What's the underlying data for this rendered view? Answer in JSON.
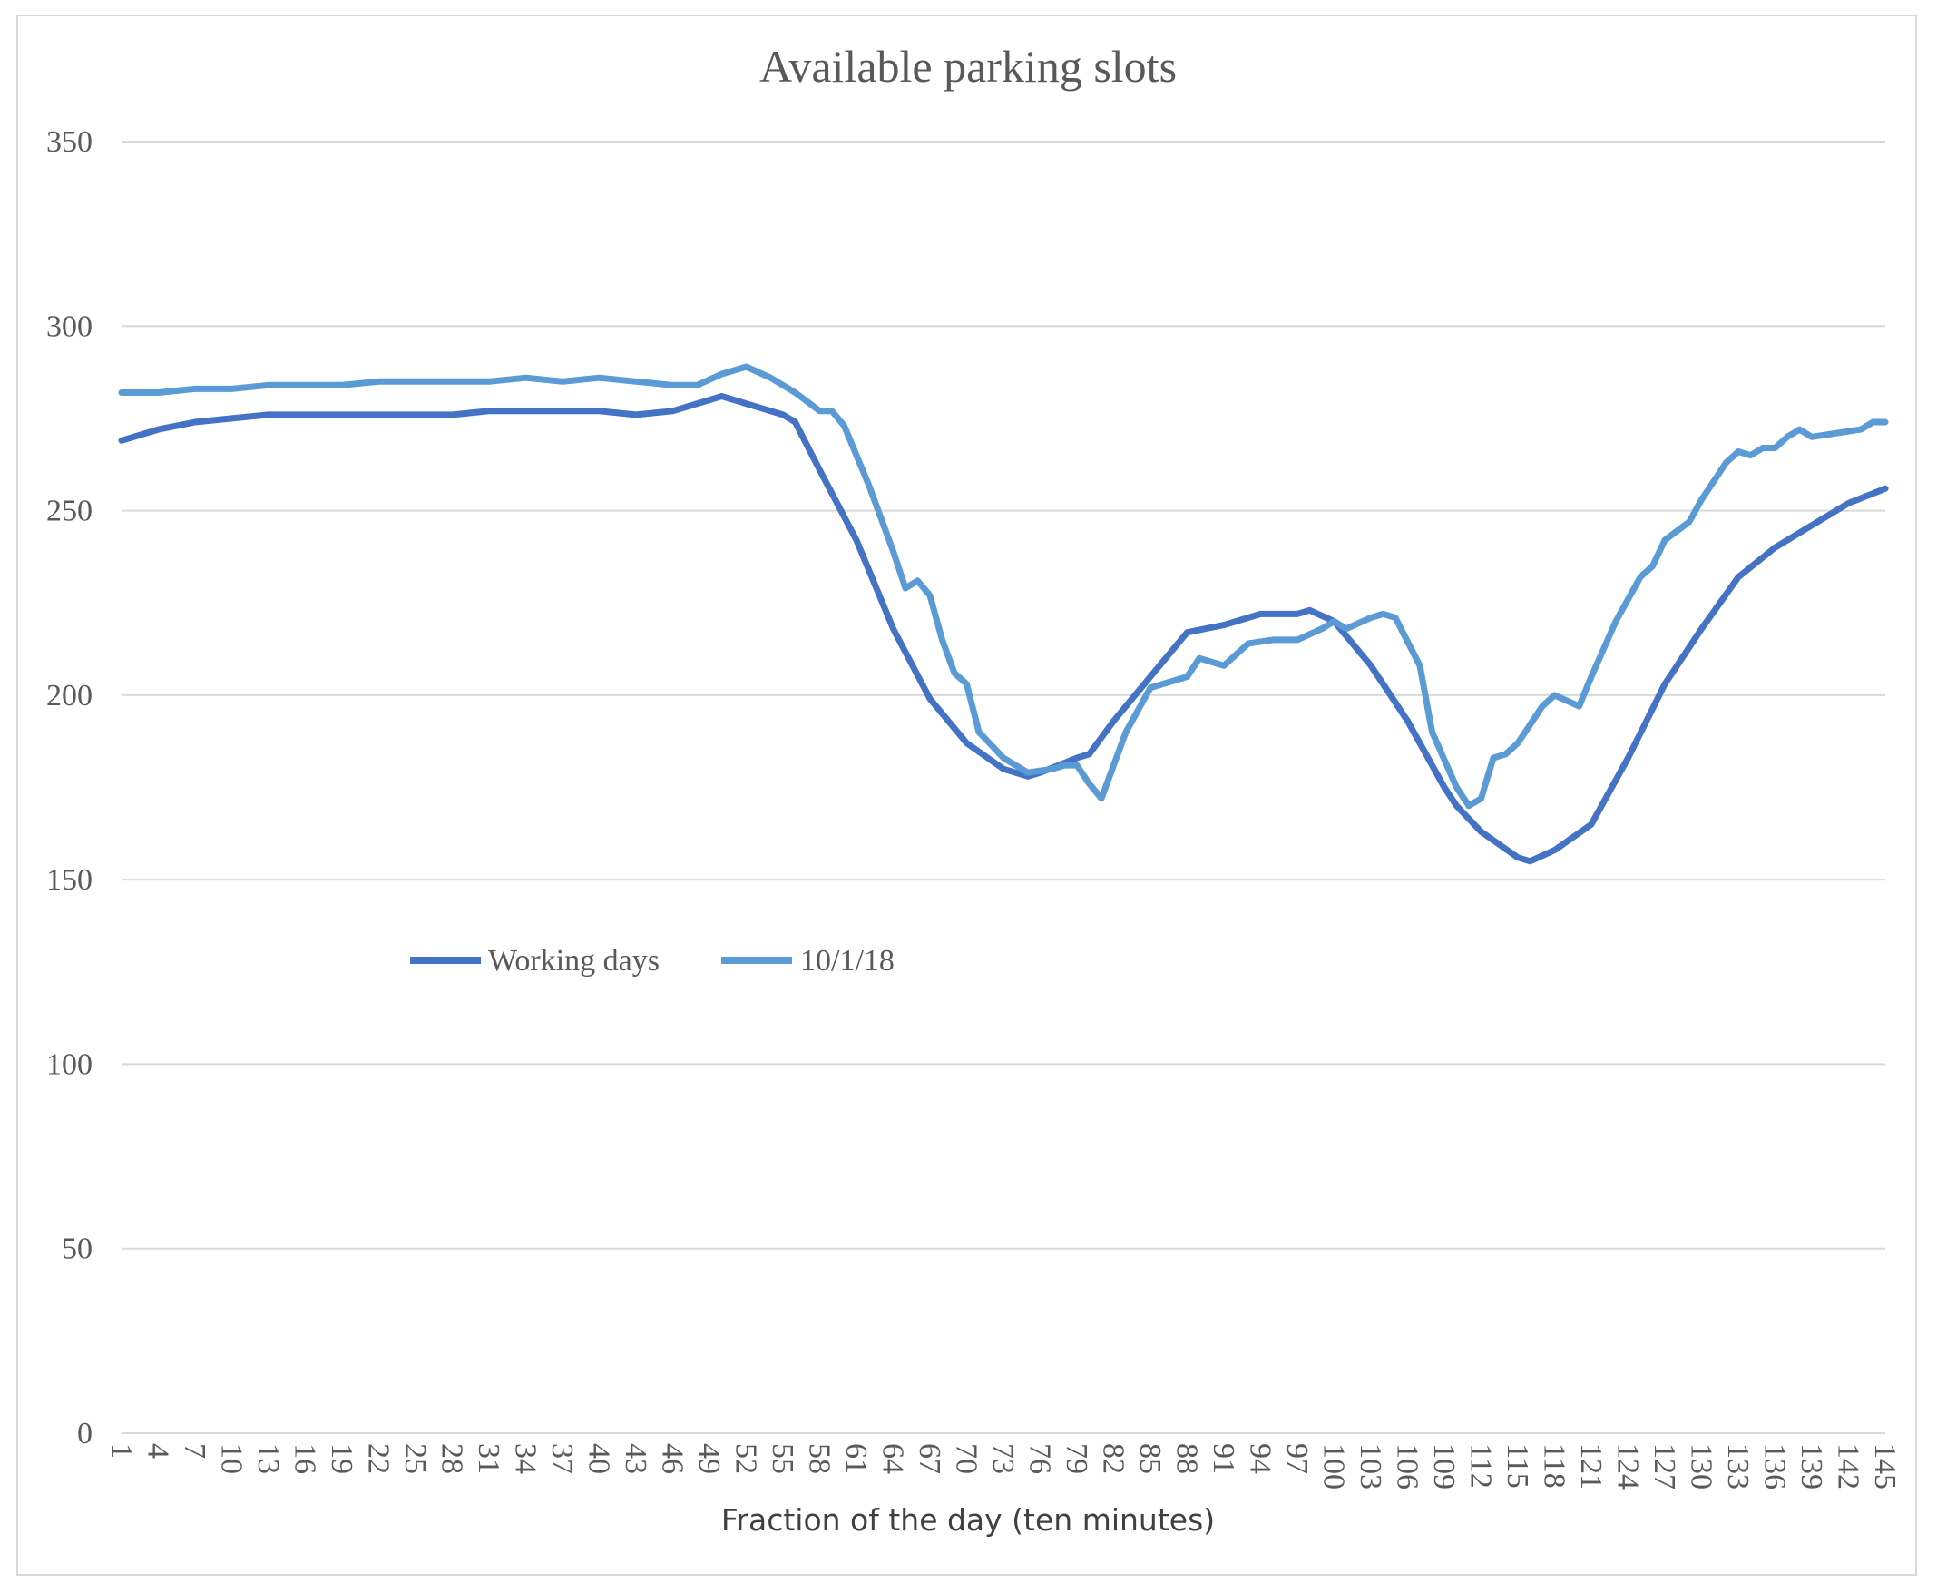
{
  "chart_data": {
    "type": "line",
    "title": "Available parking slots",
    "xlabel": "Fraction of the day (ten minutes)",
    "ylabel": "",
    "ylim": [
      0,
      350
    ],
    "yticks": [
      0,
      50,
      100,
      150,
      200,
      250,
      300,
      350
    ],
    "xticks": [
      1,
      4,
      7,
      10,
      13,
      16,
      19,
      22,
      25,
      28,
      31,
      34,
      37,
      40,
      43,
      46,
      49,
      52,
      55,
      58,
      61,
      64,
      67,
      70,
      73,
      76,
      79,
      82,
      85,
      88,
      91,
      94,
      97,
      100,
      103,
      106,
      109,
      112,
      115,
      118,
      121,
      124,
      127,
      130,
      133,
      136,
      139,
      142,
      145
    ],
    "xlim": [
      1,
      145
    ],
    "grid": "horizontal",
    "legend": "center-left",
    "series": [
      {
        "name": "Working days",
        "color": "#4472c4",
        "points": [
          [
            1,
            269
          ],
          [
            4,
            272
          ],
          [
            7,
            274
          ],
          [
            10,
            275
          ],
          [
            13,
            276
          ],
          [
            16,
            276
          ],
          [
            19,
            276
          ],
          [
            22,
            276
          ],
          [
            25,
            276
          ],
          [
            28,
            276
          ],
          [
            31,
            277
          ],
          [
            34,
            277
          ],
          [
            37,
            277
          ],
          [
            40,
            277
          ],
          [
            43,
            276
          ],
          [
            46,
            277
          ],
          [
            49,
            280
          ],
          [
            50,
            281
          ],
          [
            52,
            279
          ],
          [
            55,
            276
          ],
          [
            56,
            274
          ],
          [
            58,
            261
          ],
          [
            61,
            242
          ],
          [
            64,
            218
          ],
          [
            67,
            199
          ],
          [
            70,
            187
          ],
          [
            73,
            180
          ],
          [
            75,
            178
          ],
          [
            76,
            179
          ],
          [
            79,
            183
          ],
          [
            80,
            184
          ],
          [
            82,
            193
          ],
          [
            85,
            205
          ],
          [
            88,
            217
          ],
          [
            91,
            219
          ],
          [
            94,
            222
          ],
          [
            97,
            222
          ],
          [
            98,
            223
          ],
          [
            100,
            220
          ],
          [
            103,
            208
          ],
          [
            106,
            193
          ],
          [
            109,
            175
          ],
          [
            110,
            170
          ],
          [
            112,
            163
          ],
          [
            115,
            156
          ],
          [
            116,
            155
          ],
          [
            118,
            158
          ],
          [
            121,
            165
          ],
          [
            124,
            183
          ],
          [
            127,
            203
          ],
          [
            130,
            218
          ],
          [
            133,
            232
          ],
          [
            136,
            240
          ],
          [
            139,
            246
          ],
          [
            142,
            252
          ],
          [
            145,
            256
          ]
        ]
      },
      {
        "name": "10/1/18",
        "color": "#5b9bd5",
        "points": [
          [
            1,
            282
          ],
          [
            4,
            282
          ],
          [
            7,
            283
          ],
          [
            10,
            283
          ],
          [
            13,
            284
          ],
          [
            16,
            284
          ],
          [
            19,
            284
          ],
          [
            22,
            285
          ],
          [
            25,
            285
          ],
          [
            28,
            285
          ],
          [
            31,
            285
          ],
          [
            34,
            286
          ],
          [
            37,
            285
          ],
          [
            40,
            286
          ],
          [
            43,
            285
          ],
          [
            46,
            284
          ],
          [
            48,
            284
          ],
          [
            50,
            287
          ],
          [
            52,
            289
          ],
          [
            54,
            286
          ],
          [
            56,
            282
          ],
          [
            58,
            277
          ],
          [
            59,
            277
          ],
          [
            60,
            273
          ],
          [
            62,
            257
          ],
          [
            64,
            239
          ],
          [
            65,
            229
          ],
          [
            66,
            231
          ],
          [
            67,
            227
          ],
          [
            68,
            215
          ],
          [
            69,
            206
          ],
          [
            70,
            203
          ],
          [
            71,
            190
          ],
          [
            73,
            183
          ],
          [
            75,
            179
          ],
          [
            77,
            180
          ],
          [
            78,
            181
          ],
          [
            79,
            181
          ],
          [
            80,
            176
          ],
          [
            81,
            172
          ],
          [
            83,
            190
          ],
          [
            85,
            202
          ],
          [
            88,
            205
          ],
          [
            89,
            210
          ],
          [
            91,
            208
          ],
          [
            93,
            214
          ],
          [
            95,
            215
          ],
          [
            97,
            215
          ],
          [
            99,
            218
          ],
          [
            100,
            220
          ],
          [
            101,
            218
          ],
          [
            103,
            221
          ],
          [
            104,
            222
          ],
          [
            105,
            221
          ],
          [
            107,
            208
          ],
          [
            108,
            190
          ],
          [
            110,
            175
          ],
          [
            111,
            170
          ],
          [
            112,
            172
          ],
          [
            113,
            183
          ],
          [
            114,
            184
          ],
          [
            115,
            187
          ],
          [
            117,
            197
          ],
          [
            118,
            200
          ],
          [
            120,
            197
          ],
          [
            121,
            205
          ],
          [
            123,
            220
          ],
          [
            125,
            232
          ],
          [
            126,
            235
          ],
          [
            127,
            242
          ],
          [
            129,
            247
          ],
          [
            130,
            253
          ],
          [
            132,
            263
          ],
          [
            133,
            266
          ],
          [
            134,
            265
          ],
          [
            135,
            267
          ],
          [
            136,
            267
          ],
          [
            137,
            270
          ],
          [
            138,
            272
          ],
          [
            139,
            270
          ],
          [
            141,
            271
          ],
          [
            143,
            272
          ],
          [
            144,
            274
          ],
          [
            145,
            274
          ]
        ]
      }
    ]
  }
}
